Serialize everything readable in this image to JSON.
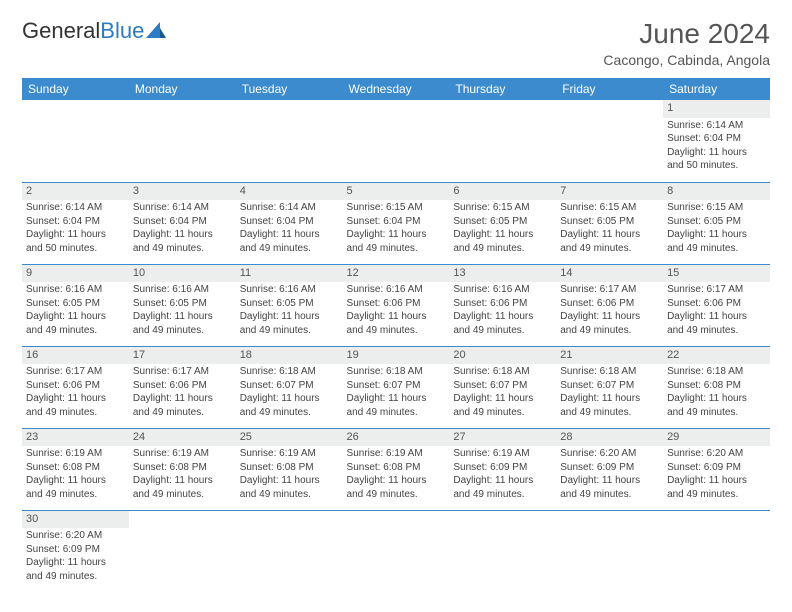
{
  "brand": {
    "name_part1": "General",
    "name_part2": "Blue"
  },
  "title": "June 2024",
  "location": "Cacongo, Cabinda, Angola",
  "colors": {
    "header_bg": "#3b8bce",
    "header_text": "#ffffff",
    "row_stripe": "#eceded",
    "cell_border": "#3b8bce",
    "logo_blue": "#2b7cc4",
    "body_text": "#444444"
  },
  "day_headers": [
    "Sunday",
    "Monday",
    "Tuesday",
    "Wednesday",
    "Thursday",
    "Friday",
    "Saturday"
  ],
  "weeks": [
    [
      null,
      null,
      null,
      null,
      null,
      null,
      {
        "n": "1",
        "sunrise": "Sunrise: 6:14 AM",
        "sunset": "Sunset: 6:04 PM",
        "day1": "Daylight: 11 hours",
        "day2": "and 50 minutes."
      }
    ],
    [
      {
        "n": "2",
        "sunrise": "Sunrise: 6:14 AM",
        "sunset": "Sunset: 6:04 PM",
        "day1": "Daylight: 11 hours",
        "day2": "and 50 minutes."
      },
      {
        "n": "3",
        "sunrise": "Sunrise: 6:14 AM",
        "sunset": "Sunset: 6:04 PM",
        "day1": "Daylight: 11 hours",
        "day2": "and 49 minutes."
      },
      {
        "n": "4",
        "sunrise": "Sunrise: 6:14 AM",
        "sunset": "Sunset: 6:04 PM",
        "day1": "Daylight: 11 hours",
        "day2": "and 49 minutes."
      },
      {
        "n": "5",
        "sunrise": "Sunrise: 6:15 AM",
        "sunset": "Sunset: 6:04 PM",
        "day1": "Daylight: 11 hours",
        "day2": "and 49 minutes."
      },
      {
        "n": "6",
        "sunrise": "Sunrise: 6:15 AM",
        "sunset": "Sunset: 6:05 PM",
        "day1": "Daylight: 11 hours",
        "day2": "and 49 minutes."
      },
      {
        "n": "7",
        "sunrise": "Sunrise: 6:15 AM",
        "sunset": "Sunset: 6:05 PM",
        "day1": "Daylight: 11 hours",
        "day2": "and 49 minutes."
      },
      {
        "n": "8",
        "sunrise": "Sunrise: 6:15 AM",
        "sunset": "Sunset: 6:05 PM",
        "day1": "Daylight: 11 hours",
        "day2": "and 49 minutes."
      }
    ],
    [
      {
        "n": "9",
        "sunrise": "Sunrise: 6:16 AM",
        "sunset": "Sunset: 6:05 PM",
        "day1": "Daylight: 11 hours",
        "day2": "and 49 minutes."
      },
      {
        "n": "10",
        "sunrise": "Sunrise: 6:16 AM",
        "sunset": "Sunset: 6:05 PM",
        "day1": "Daylight: 11 hours",
        "day2": "and 49 minutes."
      },
      {
        "n": "11",
        "sunrise": "Sunrise: 6:16 AM",
        "sunset": "Sunset: 6:05 PM",
        "day1": "Daylight: 11 hours",
        "day2": "and 49 minutes."
      },
      {
        "n": "12",
        "sunrise": "Sunrise: 6:16 AM",
        "sunset": "Sunset: 6:06 PM",
        "day1": "Daylight: 11 hours",
        "day2": "and 49 minutes."
      },
      {
        "n": "13",
        "sunrise": "Sunrise: 6:16 AM",
        "sunset": "Sunset: 6:06 PM",
        "day1": "Daylight: 11 hours",
        "day2": "and 49 minutes."
      },
      {
        "n": "14",
        "sunrise": "Sunrise: 6:17 AM",
        "sunset": "Sunset: 6:06 PM",
        "day1": "Daylight: 11 hours",
        "day2": "and 49 minutes."
      },
      {
        "n": "15",
        "sunrise": "Sunrise: 6:17 AM",
        "sunset": "Sunset: 6:06 PM",
        "day1": "Daylight: 11 hours",
        "day2": "and 49 minutes."
      }
    ],
    [
      {
        "n": "16",
        "sunrise": "Sunrise: 6:17 AM",
        "sunset": "Sunset: 6:06 PM",
        "day1": "Daylight: 11 hours",
        "day2": "and 49 minutes."
      },
      {
        "n": "17",
        "sunrise": "Sunrise: 6:17 AM",
        "sunset": "Sunset: 6:06 PM",
        "day1": "Daylight: 11 hours",
        "day2": "and 49 minutes."
      },
      {
        "n": "18",
        "sunrise": "Sunrise: 6:18 AM",
        "sunset": "Sunset: 6:07 PM",
        "day1": "Daylight: 11 hours",
        "day2": "and 49 minutes."
      },
      {
        "n": "19",
        "sunrise": "Sunrise: 6:18 AM",
        "sunset": "Sunset: 6:07 PM",
        "day1": "Daylight: 11 hours",
        "day2": "and 49 minutes."
      },
      {
        "n": "20",
        "sunrise": "Sunrise: 6:18 AM",
        "sunset": "Sunset: 6:07 PM",
        "day1": "Daylight: 11 hours",
        "day2": "and 49 minutes."
      },
      {
        "n": "21",
        "sunrise": "Sunrise: 6:18 AM",
        "sunset": "Sunset: 6:07 PM",
        "day1": "Daylight: 11 hours",
        "day2": "and 49 minutes."
      },
      {
        "n": "22",
        "sunrise": "Sunrise: 6:18 AM",
        "sunset": "Sunset: 6:08 PM",
        "day1": "Daylight: 11 hours",
        "day2": "and 49 minutes."
      }
    ],
    [
      {
        "n": "23",
        "sunrise": "Sunrise: 6:19 AM",
        "sunset": "Sunset: 6:08 PM",
        "day1": "Daylight: 11 hours",
        "day2": "and 49 minutes."
      },
      {
        "n": "24",
        "sunrise": "Sunrise: 6:19 AM",
        "sunset": "Sunset: 6:08 PM",
        "day1": "Daylight: 11 hours",
        "day2": "and 49 minutes."
      },
      {
        "n": "25",
        "sunrise": "Sunrise: 6:19 AM",
        "sunset": "Sunset: 6:08 PM",
        "day1": "Daylight: 11 hours",
        "day2": "and 49 minutes."
      },
      {
        "n": "26",
        "sunrise": "Sunrise: 6:19 AM",
        "sunset": "Sunset: 6:08 PM",
        "day1": "Daylight: 11 hours",
        "day2": "and 49 minutes."
      },
      {
        "n": "27",
        "sunrise": "Sunrise: 6:19 AM",
        "sunset": "Sunset: 6:09 PM",
        "day1": "Daylight: 11 hours",
        "day2": "and 49 minutes."
      },
      {
        "n": "28",
        "sunrise": "Sunrise: 6:20 AM",
        "sunset": "Sunset: 6:09 PM",
        "day1": "Daylight: 11 hours",
        "day2": "and 49 minutes."
      },
      {
        "n": "29",
        "sunrise": "Sunrise: 6:20 AM",
        "sunset": "Sunset: 6:09 PM",
        "day1": "Daylight: 11 hours",
        "day2": "and 49 minutes."
      }
    ],
    [
      {
        "n": "30",
        "sunrise": "Sunrise: 6:20 AM",
        "sunset": "Sunset: 6:09 PM",
        "day1": "Daylight: 11 hours",
        "day2": "and 49 minutes."
      },
      null,
      null,
      null,
      null,
      null,
      null
    ]
  ]
}
